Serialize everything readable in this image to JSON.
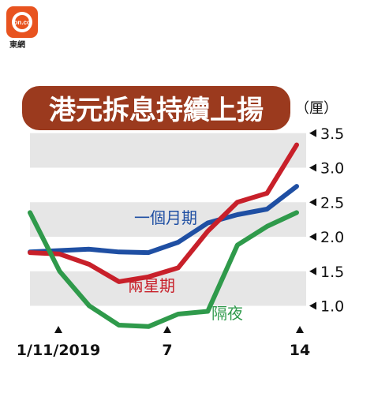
{
  "branding": {
    "logo_text": "on.cc",
    "tag": "東網"
  },
  "chart_data": {
    "type": "line",
    "title": "港元拆息持續上揚",
    "y_unit_label": "（厘）",
    "ylim": [
      0.8,
      3.6
    ],
    "yticks": [
      "3.5",
      "3.0",
      "2.5",
      "2.0",
      "1.5",
      "1.0"
    ],
    "ytick_values": [
      3.5,
      3.0,
      2.5,
      2.0,
      1.5,
      1.0
    ],
    "grid_bands": true,
    "x_ticks": [
      {
        "label": "1/11/2019",
        "index": 0
      },
      {
        "label": "7",
        "index": 4
      },
      {
        "label": "14",
        "index": 9
      }
    ],
    "x_count": 10,
    "series": [
      {
        "name": "一個月期",
        "color": "#1f4fa3",
        "values": [
          1.78,
          1.8,
          1.82,
          1.78,
          1.77,
          1.92,
          2.2,
          2.32,
          2.4,
          2.73
        ]
      },
      {
        "name": "兩星期",
        "color": "#c8202a",
        "values": [
          1.77,
          1.75,
          1.6,
          1.35,
          1.42,
          1.55,
          2.08,
          2.5,
          2.63,
          3.33
        ]
      },
      {
        "name": "隔夜",
        "color": "#2f9a4b",
        "values": [
          2.35,
          1.5,
          1.0,
          0.72,
          0.7,
          0.88,
          0.92,
          1.88,
          2.15,
          2.35
        ]
      }
    ]
  }
}
